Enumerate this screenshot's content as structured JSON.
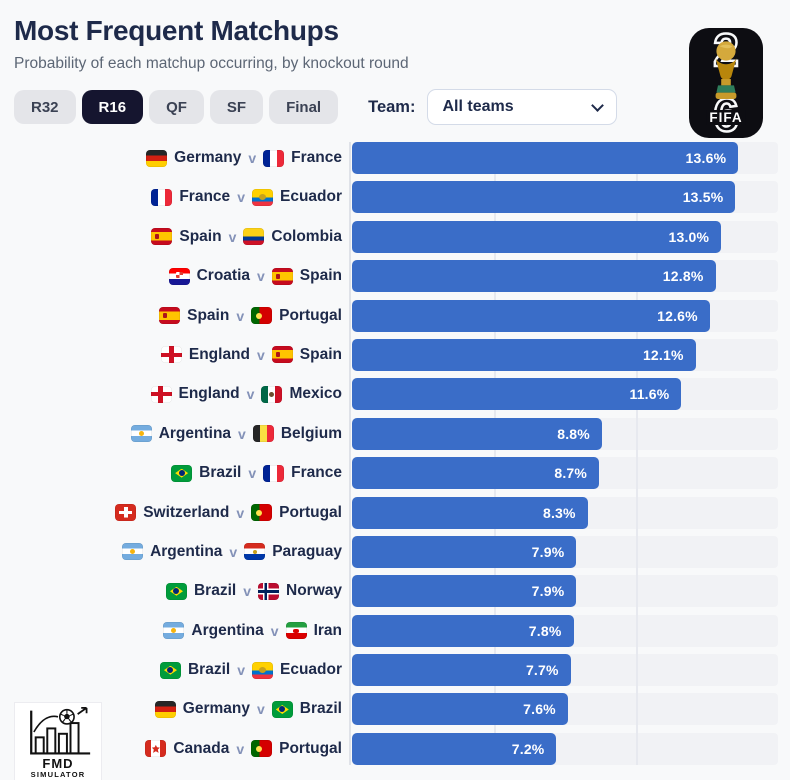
{
  "header": {
    "title": "Most Frequent Matchups",
    "subtitle": "Probability of each matchup occurring, by knockout round",
    "tabs": [
      {
        "label": "R32",
        "active": false
      },
      {
        "label": "R16",
        "active": true
      },
      {
        "label": "QF",
        "active": false
      },
      {
        "label": "SF",
        "active": false
      },
      {
        "label": "Final",
        "active": false
      }
    ],
    "team_filter": {
      "label": "Team:",
      "selected": "All teams"
    },
    "fifa_logo": {
      "year": "26",
      "text": "FIFA",
      "icon": "world-cup-trophy-icon"
    }
  },
  "watermark": {
    "line1": "FMD",
    "line2": "SIMULATOR",
    "icons": [
      "bar-chart-icon",
      "soccer-ball-icon",
      "arrow-up-icon"
    ]
  },
  "colors": {
    "bar_blue": "#3a6dc8",
    "active_tab_navy": "#15152f",
    "text_navy": "#1e2a4a",
    "page_background": "#f8f9fa"
  },
  "chart_data": {
    "type": "bar",
    "orientation": "horizontal",
    "title": "Most Frequent Matchups",
    "xlabel": "",
    "ylabel": "",
    "xlim": [
      0,
      15
    ],
    "gridlines_percent": [
      5,
      10
    ],
    "grid": "vertical, subtle",
    "legend": "none",
    "bar_color": "#3a6dc8",
    "value_label_color": "#ffffff",
    "separator": "v",
    "rows": [
      {
        "team1": "Germany",
        "flag1": "de",
        "team2": "France",
        "flag2": "fr",
        "value": 13.6,
        "value_label": "13.6%"
      },
      {
        "team1": "France",
        "flag1": "fr",
        "team2": "Ecuador",
        "flag2": "ec",
        "value": 13.5,
        "value_label": "13.5%"
      },
      {
        "team1": "Spain",
        "flag1": "es",
        "team2": "Colombia",
        "flag2": "co",
        "value": 13.0,
        "value_label": "13.0%"
      },
      {
        "team1": "Croatia",
        "flag1": "hr",
        "team2": "Spain",
        "flag2": "es",
        "value": 12.8,
        "value_label": "12.8%"
      },
      {
        "team1": "Spain",
        "flag1": "es",
        "team2": "Portugal",
        "flag2": "pt",
        "value": 12.6,
        "value_label": "12.6%"
      },
      {
        "team1": "England",
        "flag1": "en",
        "team2": "Spain",
        "flag2": "es",
        "value": 12.1,
        "value_label": "12.1%"
      },
      {
        "team1": "England",
        "flag1": "en",
        "team2": "Mexico",
        "flag2": "mx",
        "value": 11.6,
        "value_label": "11.6%"
      },
      {
        "team1": "Argentina",
        "flag1": "ar",
        "team2": "Belgium",
        "flag2": "be",
        "value": 8.8,
        "value_label": "8.8%"
      },
      {
        "team1": "Brazil",
        "flag1": "br",
        "team2": "France",
        "flag2": "fr",
        "value": 8.7,
        "value_label": "8.7%"
      },
      {
        "team1": "Switzerland",
        "flag1": "ch",
        "team2": "Portugal",
        "flag2": "pt",
        "value": 8.3,
        "value_label": "8.3%"
      },
      {
        "team1": "Argentina",
        "flag1": "ar",
        "team2": "Paraguay",
        "flag2": "py",
        "value": 7.9,
        "value_label": "7.9%"
      },
      {
        "team1": "Brazil",
        "flag1": "br",
        "team2": "Norway",
        "flag2": "no",
        "value": 7.9,
        "value_label": "7.9%"
      },
      {
        "team1": "Argentina",
        "flag1": "ar",
        "team2": "Iran",
        "flag2": "ir",
        "value": 7.8,
        "value_label": "7.8%"
      },
      {
        "team1": "Brazil",
        "flag1": "br",
        "team2": "Ecuador",
        "flag2": "ec",
        "value": 7.7,
        "value_label": "7.7%"
      },
      {
        "team1": "Germany",
        "flag1": "de",
        "team2": "Brazil",
        "flag2": "br",
        "value": 7.6,
        "value_label": "7.6%"
      },
      {
        "team1": "Canada",
        "flag1": "ca",
        "team2": "Portugal",
        "flag2": "pt",
        "value": 7.2,
        "value_label": "7.2%"
      }
    ]
  }
}
